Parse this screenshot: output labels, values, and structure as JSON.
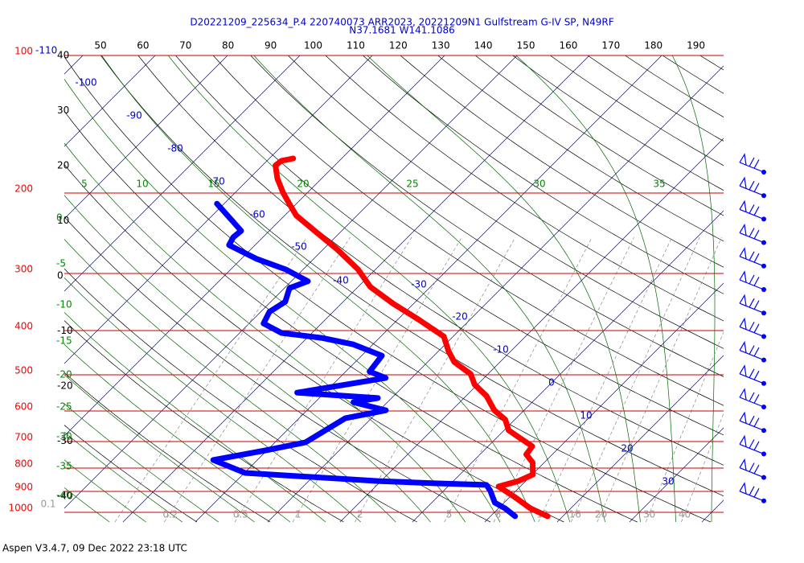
{
  "chart_data": {
    "type": "skewt",
    "title": "D20221209_225634_P.4 220740073 ARR2023, 20221209N1 Gulfstream G-IV SP, N49RF",
    "subtitle": "N37.1681 W141.1086",
    "footer": "Aspen V3.4.7, 09 Dec 2022  23:18 UTC",
    "log_scale": true,
    "ylim": [
      1050,
      100
    ],
    "yticks": [
      100,
      200,
      300,
      400,
      500,
      600,
      700,
      800,
      900,
      1000
    ],
    "isotherm_labels": [
      -110,
      -100,
      -90,
      -80,
      -70,
      -60,
      -50,
      -40,
      -30,
      -20,
      -10,
      0,
      10,
      20,
      30
    ],
    "top_labels": [
      50,
      60,
      70,
      80,
      90,
      100,
      110,
      120,
      130,
      140,
      150,
      160,
      170,
      180,
      190
    ],
    "left_labels": [
      40,
      30,
      20,
      10,
      0,
      -10,
      -20,
      -30,
      -40
    ],
    "moist_top_labels": [
      5,
      10,
      15,
      20,
      25,
      30,
      35
    ],
    "moist_left_labels": [
      0,
      -5,
      -10,
      -15,
      -20,
      -25,
      -30,
      -35,
      -40
    ],
    "mixing_ratio_labels": [
      0.1,
      0.2,
      0.5,
      1,
      2,
      5,
      8,
      12,
      16,
      20,
      30,
      40
    ],
    "series": [
      {
        "color": "#ff0000",
        "pressure": [
          1020,
          980,
          926,
          878,
          854,
          827,
          778,
          747,
          717,
          689,
          661,
          627,
          598,
          556,
          525,
          498,
          469,
          444,
          412,
          378,
          350,
          321,
          294,
          266,
          245,
          224,
          213,
          200,
          186,
          174,
          170,
          168
        ],
        "values": [
          17.9,
          14.4,
          10.7,
          7.0,
          9.0,
          10.1,
          8.4,
          6.4,
          6.1,
          3.4,
          0.6,
          -1.3,
          -4.1,
          -7.2,
          -10.4,
          -12.4,
          -16.3,
          -18.6,
          -21.3,
          -27.2,
          -32.7,
          -38.3,
          -42.4,
          -48,
          -53,
          -58.4,
          -60.6,
          -63.3,
          -66.1,
          -68.2,
          -68,
          -66.7
        ]
      },
      {
        "color": "#0000ff",
        "pressure": [
          1020,
          980,
          952,
          896,
          871,
          864,
          854,
          820,
          787,
          768,
          732,
          703,
          622,
          598,
          574,
          562,
          547,
          508,
          492,
          454,
          429,
          415,
          405,
          386,
          364,
          346,
          323,
          312,
          294,
          279,
          260,
          250,
          242,
          231,
          211
        ],
        "values": [
          13.4,
          10.9,
          8.7,
          6.4,
          5.1,
          -2.3,
          -10.4,
          -29.9,
          -33.8,
          -36.1,
          -30.2,
          -25.8,
          -23.6,
          -19.1,
          -24.7,
          -21.9,
          -33.8,
          -23.6,
          -26.7,
          -27.2,
          -32.7,
          -38,
          -44.2,
          -48,
          -48.8,
          -48,
          -49.3,
          -47.7,
          -52.4,
          -57.8,
          -63.6,
          -64.1,
          -63.9,
          -66.3,
          -71
        ]
      }
    ]
  }
}
